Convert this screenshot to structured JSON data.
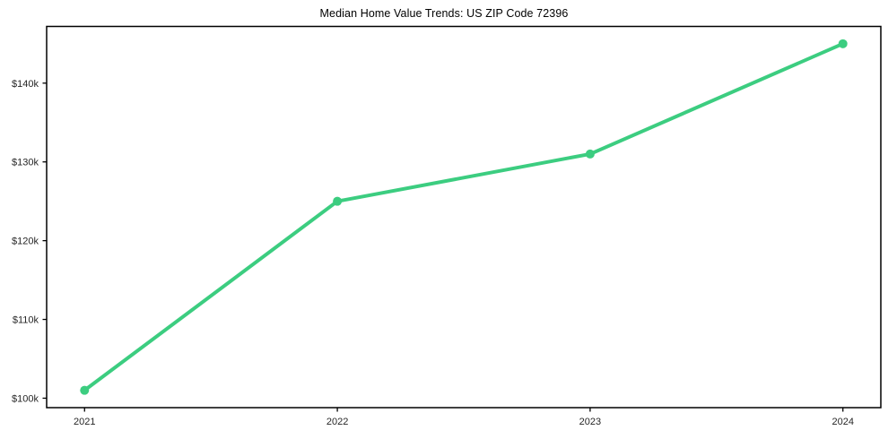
{
  "chart_data": {
    "type": "line",
    "title": "Median Home Value Trends: US ZIP Code 72396",
    "x": [
      2021,
      2022,
      2023,
      2024
    ],
    "x_tick_labels": [
      "2021",
      "2022",
      "2023",
      "2024"
    ],
    "series": [
      {
        "name": "Median Home Value",
        "values": [
          101000,
          125000,
          131000,
          145000
        ]
      }
    ],
    "y_ticks": [
      100000,
      110000,
      120000,
      130000,
      140000
    ],
    "y_tick_labels": [
      "$100k",
      "$110k",
      "$120k",
      "$130k",
      "$140k"
    ],
    "xlabel": "",
    "ylabel": "",
    "xlim": [
      2020.85,
      2024.15
    ],
    "ylim": [
      98800,
      147200
    ],
    "grid": false,
    "legend_position": "none",
    "colors": {
      "line": "#3ccd80",
      "marker": "#3ccd80",
      "spine": "#000000",
      "tick_label": "#262626",
      "title": "#000000",
      "background": "#ffffff"
    },
    "line_width": 4,
    "marker_radius": 5
  }
}
